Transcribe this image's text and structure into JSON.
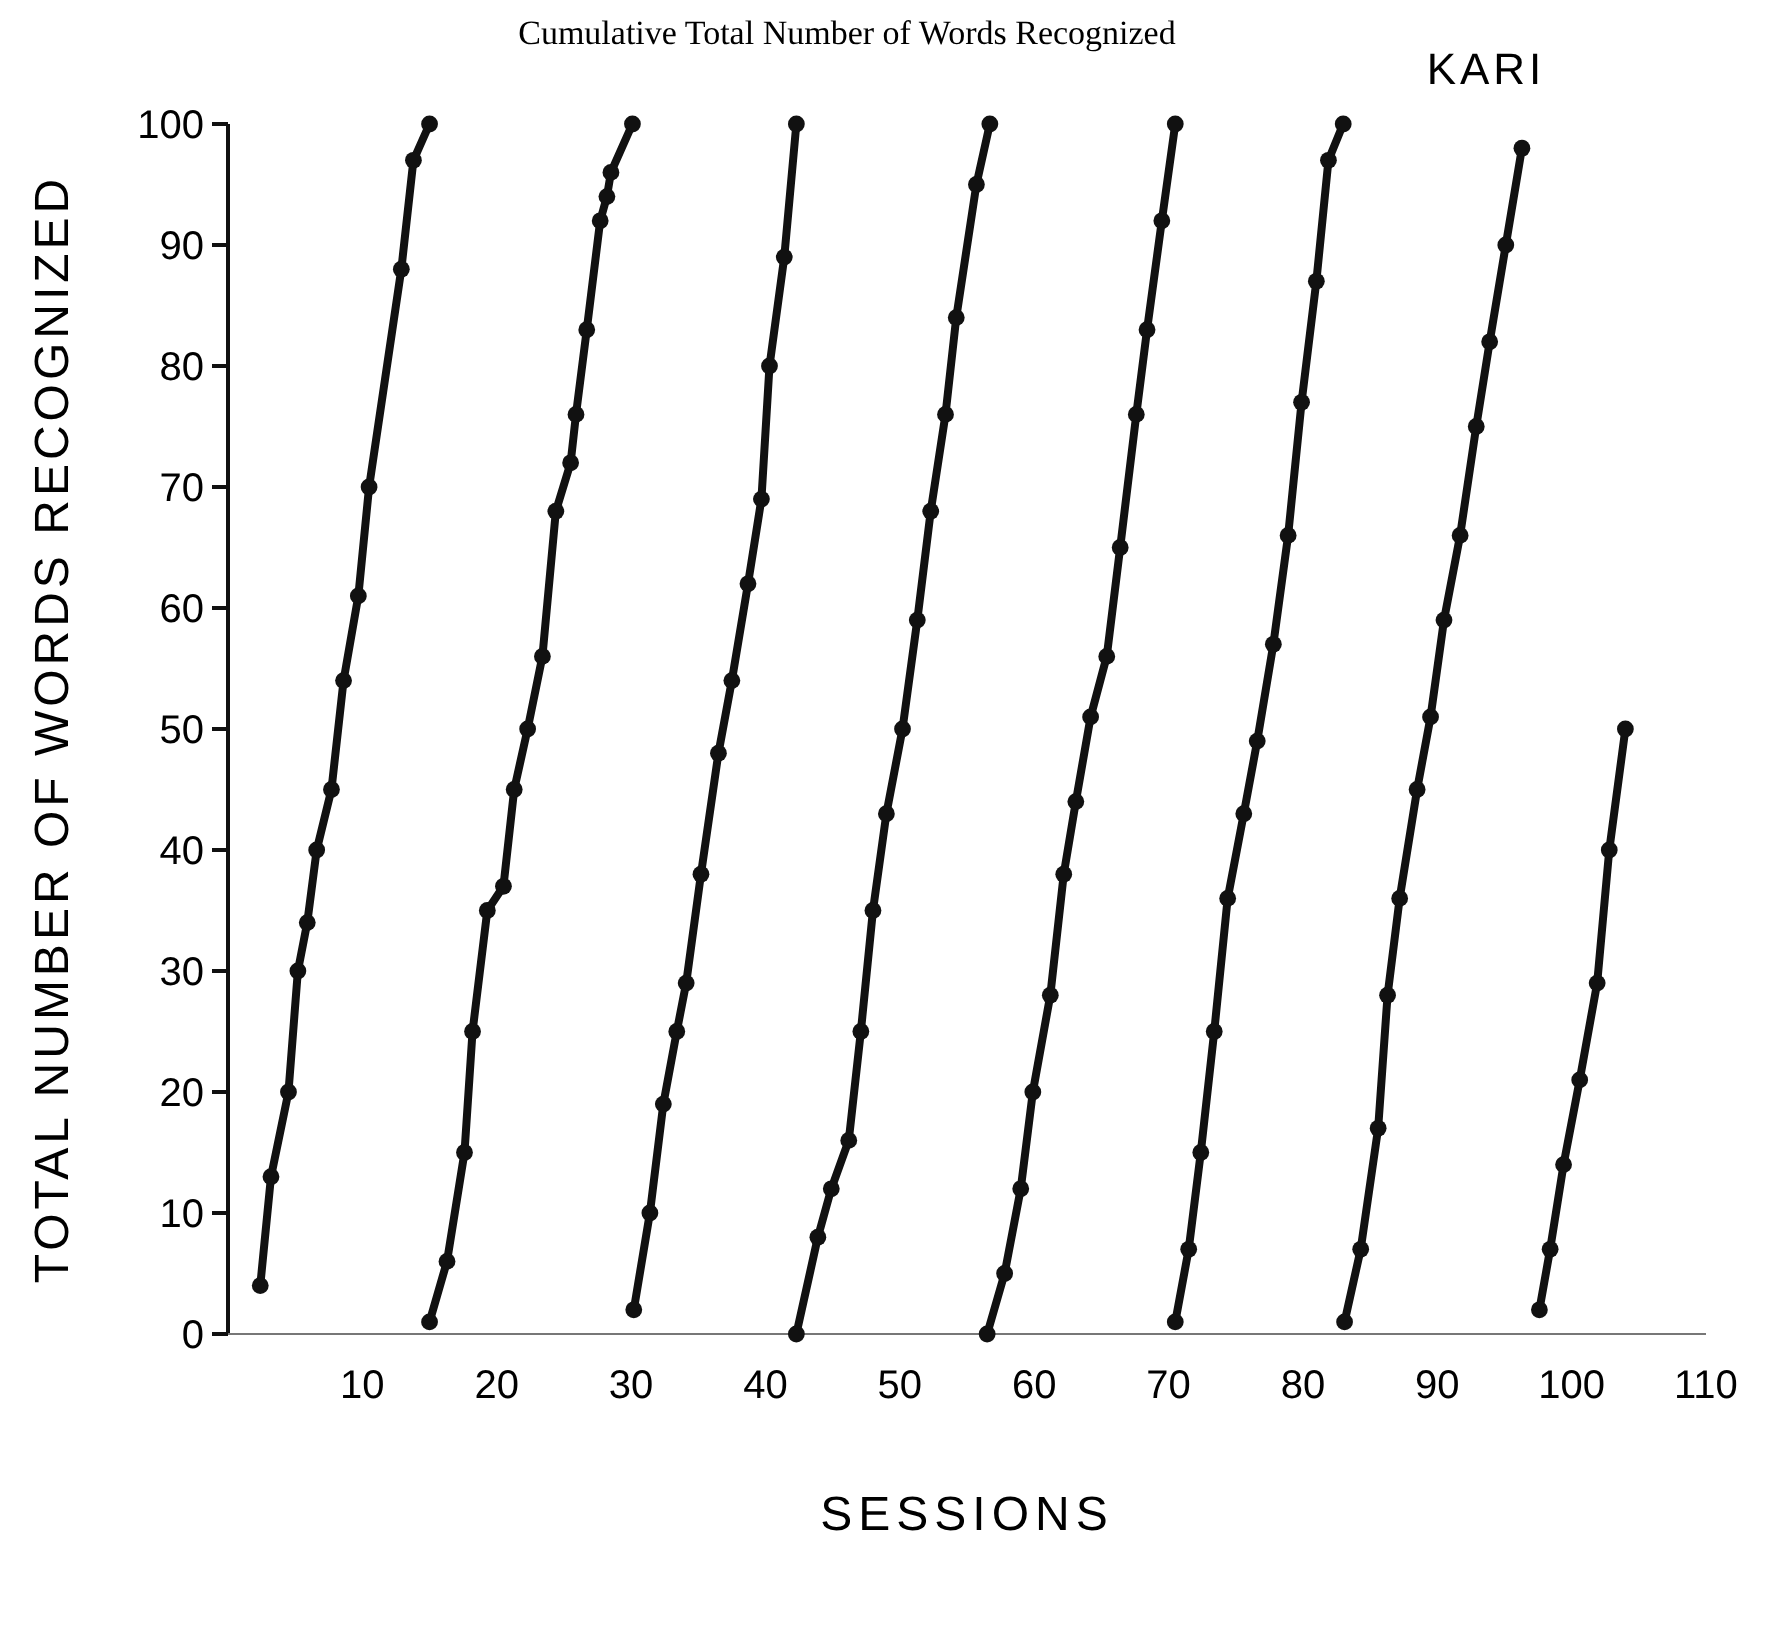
{
  "chart_data": {
    "type": "line",
    "title": "Cumulative Total Number of Words Recognized",
    "xlabel": "SESSIONS",
    "ylabel": "TOTAL NUMBER OF WORDS RECOGNIZED",
    "annotations": [
      "KARI"
    ],
    "xlim": [
      0,
      110
    ],
    "xticks": [
      10,
      20,
      30,
      40,
      50,
      60,
      70,
      80,
      90,
      100,
      110
    ],
    "ylim": [
      0,
      100
    ],
    "yticks": [
      0,
      10,
      20,
      30,
      40,
      50,
      60,
      70,
      80,
      90,
      100
    ],
    "grid": false,
    "marker": "circle",
    "line_style": "solid",
    "series": [
      {
        "color": "#111111",
        "x": [
          2.4,
          3.2,
          4.5,
          5.2,
          5.9,
          6.6,
          7.7,
          8.6,
          9.7,
          10.5,
          12.9,
          13.8,
          15.0
        ],
        "values": [
          4,
          13,
          20,
          30,
          34,
          40,
          45,
          54,
          61,
          70,
          88,
          97,
          100
        ]
      },
      {
        "color": "#111111",
        "x": [
          15.0,
          16.3,
          17.6,
          18.2,
          19.3,
          20.5,
          21.3,
          22.3,
          23.4,
          24.4,
          25.5,
          25.9,
          26.7,
          27.7,
          28.2,
          28.5,
          30.1
        ],
        "values": [
          1,
          6,
          15,
          25,
          35,
          37,
          45,
          50,
          56,
          68,
          72,
          76,
          83,
          92,
          94,
          96,
          100
        ]
      },
      {
        "color": "#111111",
        "x": [
          30.2,
          31.4,
          32.4,
          33.4,
          34.1,
          35.2,
          36.5,
          37.5,
          38.7,
          39.7,
          40.3,
          41.4,
          42.3
        ],
        "values": [
          2,
          10,
          19,
          25,
          29,
          38,
          48,
          54,
          62,
          69,
          80,
          89,
          100
        ]
      },
      {
        "color": "#111111",
        "x": [
          42.3,
          43.9,
          44.9,
          46.2,
          47.1,
          48.0,
          49.0,
          50.2,
          51.3,
          52.3,
          53.4,
          54.2,
          55.7,
          56.7
        ],
        "values": [
          0,
          8,
          12,
          16,
          25,
          35,
          43,
          50,
          59,
          68,
          76,
          84,
          95,
          100
        ]
      },
      {
        "color": "#111111",
        "x": [
          56.5,
          57.8,
          59.0,
          59.9,
          61.2,
          62.2,
          63.1,
          64.2,
          65.4,
          66.4,
          67.6,
          68.4,
          69.5,
          70.5
        ],
        "values": [
          0,
          5,
          12,
          20,
          28,
          38,
          44,
          51,
          56,
          65,
          76,
          83,
          92,
          100
        ]
      },
      {
        "color": "#111111",
        "x": [
          70.5,
          71.5,
          72.4,
          73.4,
          74.4,
          75.6,
          76.6,
          77.8,
          78.9,
          79.9,
          81.0,
          81.9,
          83.0
        ],
        "values": [
          1,
          7,
          15,
          25,
          36,
          43,
          49,
          57,
          66,
          77,
          87,
          97,
          100
        ]
      },
      {
        "color": "#111111",
        "x": [
          83.1,
          84.3,
          85.6,
          86.3,
          87.2,
          88.5,
          89.5,
          90.5,
          91.7,
          92.9,
          93.9,
          95.1,
          96.3
        ],
        "values": [
          1,
          7,
          17,
          28,
          36,
          45,
          51,
          59,
          66,
          75,
          82,
          90,
          98
        ]
      },
      {
        "color": "#111111",
        "x": [
          97.6,
          98.4,
          99.4,
          100.6,
          101.9,
          102.8,
          104.0
        ],
        "values": [
          2,
          7,
          14,
          21,
          29,
          40,
          50
        ]
      }
    ]
  }
}
